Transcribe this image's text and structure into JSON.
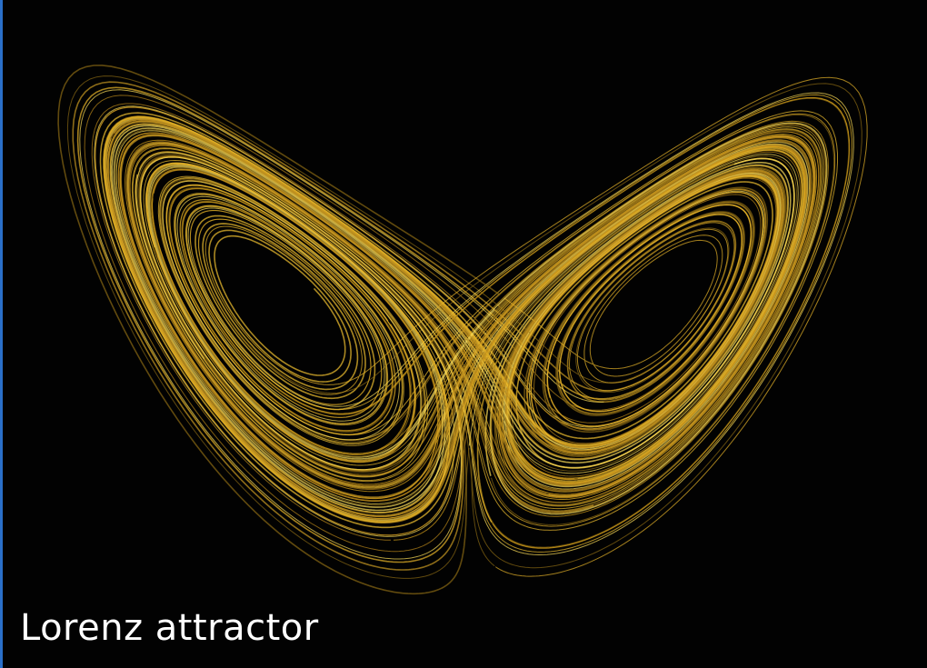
{
  "caption": "Lorenz attractor"
}
